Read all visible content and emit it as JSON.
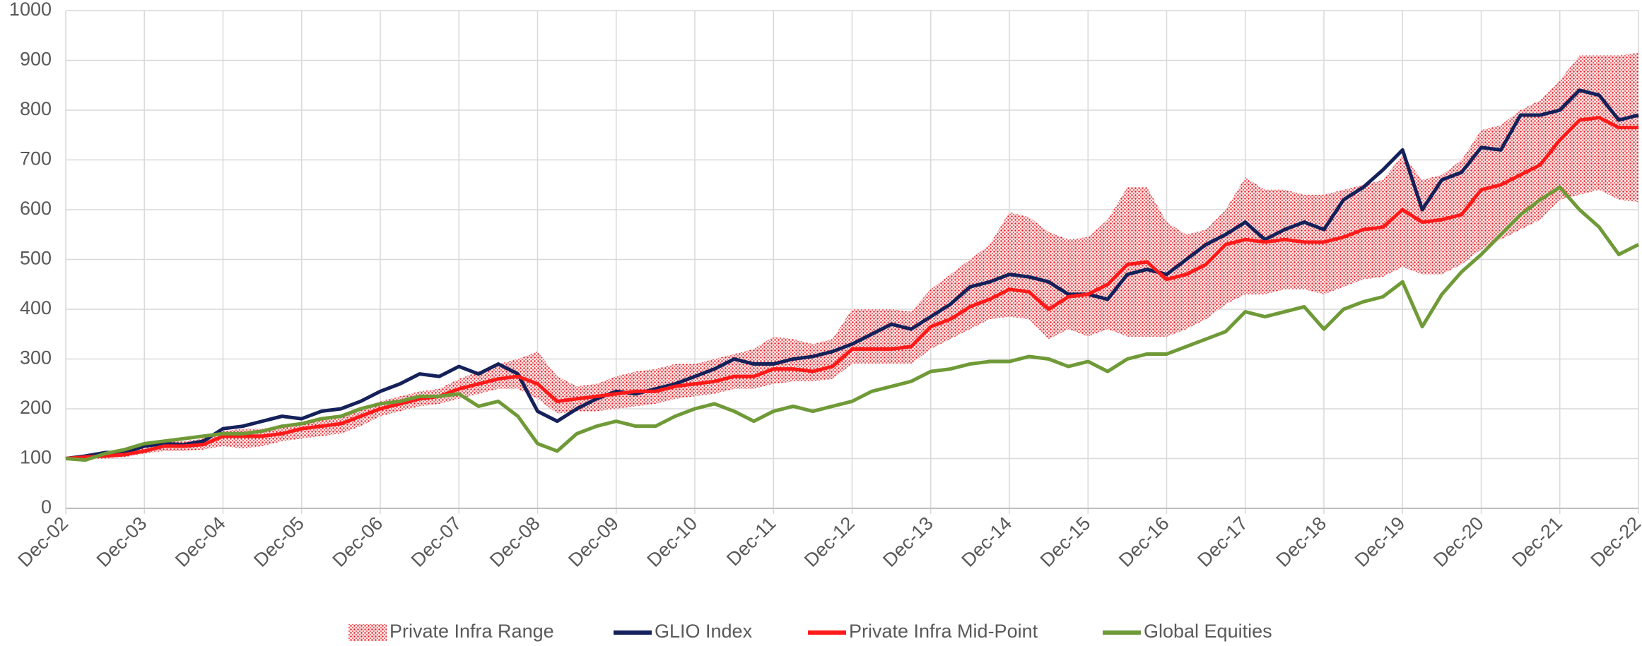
{
  "chart_data": {
    "type": "line",
    "categories": [
      "Dec-02",
      null,
      null,
      null,
      "Dec-03",
      null,
      null,
      null,
      "Dec-04",
      null,
      null,
      null,
      "Dec-05",
      null,
      null,
      null,
      "Dec-06",
      null,
      null,
      null,
      "Dec-07",
      null,
      null,
      null,
      "Dec-08",
      null,
      null,
      null,
      "Dec-09",
      null,
      null,
      null,
      "Dec-10",
      null,
      null,
      null,
      "Dec-11",
      null,
      null,
      null,
      "Dec-12",
      null,
      null,
      null,
      "Dec-13",
      null,
      null,
      null,
      "Dec-14",
      null,
      null,
      null,
      "Dec-15",
      null,
      null,
      null,
      "Dec-16",
      null,
      null,
      null,
      "Dec-17",
      null,
      null,
      null,
      "Dec-18",
      null,
      null,
      null,
      "Dec-19",
      null,
      null,
      null,
      "Dec-20",
      null,
      null,
      null,
      "Dec-21",
      null,
      null,
      null,
      "Dec-22"
    ],
    "series": [
      {
        "name": "Private Infra Range",
        "color": "#e31b23",
        "type": "range",
        "low": [
          100,
          98,
          100,
          103,
          110,
          115,
          115,
          118,
          125,
          120,
          125,
          135,
          140,
          145,
          150,
          165,
          185,
          195,
          205,
          210,
          220,
          230,
          240,
          240,
          220,
          190,
          195,
          195,
          200,
          205,
          210,
          220,
          225,
          230,
          240,
          240,
          250,
          255,
          255,
          260,
          290,
          290,
          290,
          290,
          320,
          340,
          360,
          380,
          385,
          380,
          340,
          360,
          345,
          360,
          345,
          345,
          345,
          360,
          380,
          410,
          430,
          430,
          440,
          440,
          430,
          445,
          460,
          465,
          485,
          470,
          470,
          490,
          520,
          540,
          560,
          580,
          620,
          630,
          640,
          620,
          615
        ],
        "high": [
          100,
          105,
          110,
          113,
          125,
          135,
          135,
          140,
          155,
          160,
          160,
          165,
          170,
          180,
          185,
          200,
          215,
          225,
          235,
          240,
          260,
          275,
          290,
          300,
          315,
          265,
          245,
          250,
          265,
          275,
          280,
          290,
          290,
          300,
          310,
          320,
          345,
          340,
          330,
          340,
          400,
          400,
          400,
          395,
          440,
          470,
          500,
          530,
          595,
          585,
          555,
          540,
          545,
          580,
          645,
          645,
          575,
          550,
          560,
          600,
          665,
          640,
          640,
          630,
          630,
          640,
          650,
          660,
          710,
          660,
          670,
          700,
          760,
          770,
          800,
          820,
          860,
          910,
          910,
          910,
          915
        ]
      },
      {
        "name": "GLIO Index",
        "color": "#14215a",
        "values": [
          100,
          105,
          112,
          112,
          125,
          130,
          128,
          135,
          160,
          165,
          175,
          185,
          180,
          195,
          200,
          215,
          235,
          250,
          270,
          265,
          285,
          270,
          290,
          270,
          195,
          175,
          200,
          220,
          235,
          230,
          240,
          250,
          265,
          280,
          300,
          290,
          290,
          300,
          305,
          315,
          330,
          350,
          370,
          360,
          385,
          410,
          445,
          455,
          470,
          465,
          455,
          430,
          430,
          420,
          470,
          480,
          470,
          500,
          530,
          550,
          575,
          540,
          560,
          575,
          560,
          620,
          645,
          680,
          720,
          600,
          660,
          675,
          725,
          720,
          790,
          790,
          800,
          840,
          830,
          780,
          790
        ]
      },
      {
        "name": "Private Infra Mid-Point",
        "color": "#ff1a1a",
        "values": [
          100,
          103,
          105,
          108,
          115,
          125,
          125,
          128,
          145,
          145,
          145,
          150,
          160,
          165,
          170,
          185,
          200,
          210,
          220,
          225,
          240,
          250,
          260,
          265,
          250,
          215,
          220,
          225,
          230,
          235,
          235,
          245,
          250,
          255,
          265,
          265,
          280,
          280,
          275,
          285,
          320,
          320,
          320,
          325,
          365,
          380,
          405,
          420,
          440,
          435,
          400,
          425,
          430,
          450,
          490,
          495,
          460,
          470,
          490,
          530,
          540,
          535,
          540,
          535,
          535,
          545,
          560,
          565,
          600,
          575,
          580,
          590,
          640,
          650,
          670,
          690,
          740,
          780,
          785,
          765,
          765
        ]
      },
      {
        "name": "Global Equities",
        "color": "#6f9a37",
        "values": [
          100,
          97,
          110,
          118,
          130,
          135,
          140,
          145,
          150,
          150,
          155,
          165,
          170,
          180,
          185,
          200,
          210,
          215,
          225,
          225,
          230,
          205,
          215,
          185,
          130,
          115,
          150,
          165,
          175,
          165,
          165,
          185,
          200,
          210,
          195,
          175,
          195,
          205,
          195,
          205,
          215,
          235,
          245,
          255,
          275,
          280,
          290,
          295,
          295,
          305,
          300,
          285,
          295,
          275,
          300,
          310,
          310,
          325,
          340,
          355,
          395,
          385,
          395,
          405,
          360,
          400,
          415,
          425,
          455,
          365,
          430,
          475,
          510,
          550,
          590,
          620,
          645,
          600,
          565,
          510,
          530
        ]
      }
    ],
    "ylim": [
      0,
      1000
    ],
    "yticks": [
      0,
      100,
      200,
      300,
      400,
      500,
      600,
      700,
      800,
      900,
      1000
    ],
    "grid": true
  }
}
